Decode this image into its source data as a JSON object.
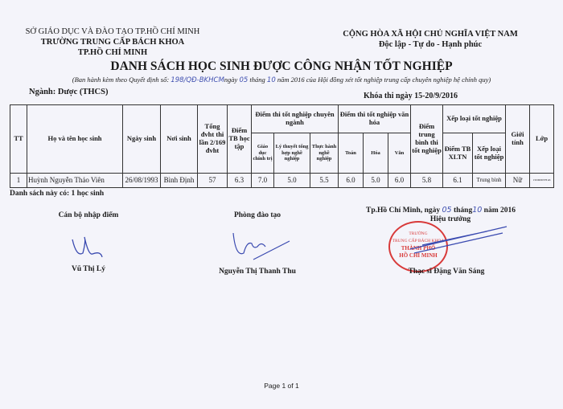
{
  "header_left": {
    "line1": "SỞ GIÁO DỤC VÀ ĐÀO TẠO TP.HỒ CHÍ MINH",
    "line2": "TRƯỜNG TRUNG CẤP BÁCH KHOA",
    "line3": "TP.HỒ CHÍ MINH"
  },
  "header_right": {
    "line1": "CỘNG HÒA XÃ HỘI CHỦ NGHĨA VIỆT NAM",
    "line2": "Độc lập - Tự do - Hạnh phúc"
  },
  "title": "DANH SÁCH HỌC SINH ĐƯỢC CÔNG NHẬN TỐT NGHIỆP",
  "subtitle": {
    "prefix": "(Ban hành kèm theo Quyết định số:",
    "decision_no": "198/QĐ-BKHCM",
    "day_label": "ngày",
    "day": "05",
    "month_label": "tháng",
    "month": "10",
    "suffix": "năm 2016 của Hội đồng xét tốt nghiệp trung cấp chuyên nghiệp hệ chính quy)"
  },
  "major": "Ngành: Dược (THCS)",
  "exam_period": "Khóa thi ngày 15-20/9/2016",
  "table": {
    "headers": {
      "tt": "TT",
      "name": "Họ và tên học sinh",
      "dob": "Ngày sinh",
      "pob": "Nơi sinh",
      "credits": "Tổng đvht thi lần 2/169 đvht",
      "gpa": "Điểm TB học tập",
      "major_exam": "Điểm thi tốt nghiệp chuyên ngành",
      "politics": "Giáo dục chính trị",
      "theory": "Lý thuyết tổng hợp nghề nghiệp",
      "practice": "Thực hành nghề nghiệp",
      "culture_exam": "Điểm thi tốt nghiệp văn hóa",
      "math": "Toán",
      "chem": "Hóa",
      "lit": "Văn",
      "exam_avg": "Điểm trung bình thi tốt nghiệp",
      "ranking": "Xếp loại tốt nghiệp",
      "xltn": "Điểm TB XLTN",
      "rank": "Xếp loại tốt nghiệp",
      "gender": "Giới tính",
      "class": "Lớp"
    },
    "rows": [
      {
        "tt": "1",
        "name": "Huỳnh Nguyễn Thảo  Viên",
        "dob": "26/08/1993",
        "pob": "Bình Định",
        "credits": "57",
        "gpa": "6.3",
        "politics": "7.0",
        "theory": "5.0",
        "practice": "5.5",
        "math": "6.0",
        "chem": "5.0",
        "lit": "6.0",
        "exam_avg": "5.8",
        "xltn": "6.1",
        "rank": "Trung bình",
        "gender": "Nữ",
        "class": "15DD0DTH k6"
      }
    ]
  },
  "summary": "Danh sách này có: 1 học sinh",
  "signatures": {
    "entry_officer": {
      "role": "Cán bộ nhập điểm",
      "name": "Vũ Thị Lý"
    },
    "training_office": {
      "role": "Phòng đào tạo",
      "name": "Nguyễn Thị Thanh Thu"
    },
    "date_line": {
      "prefix": "Tp.Hồ Chí Minh, ngày",
      "day": "05",
      "month_label": "tháng",
      "month": "10",
      "year": "năm 2016"
    },
    "principal": {
      "role": "Hiệu trưởng",
      "name": "Thạc sĩ Đặng Văn Sáng"
    }
  },
  "stamp": {
    "text": [
      "TRƯỜNG",
      "TRUNG CẤP BÁCH KHOA",
      "THÀNH PHỐ",
      "HỒ CHÍ MINH"
    ],
    "color": "#d83a3a"
  },
  "footer": "Page 1 of 1"
}
